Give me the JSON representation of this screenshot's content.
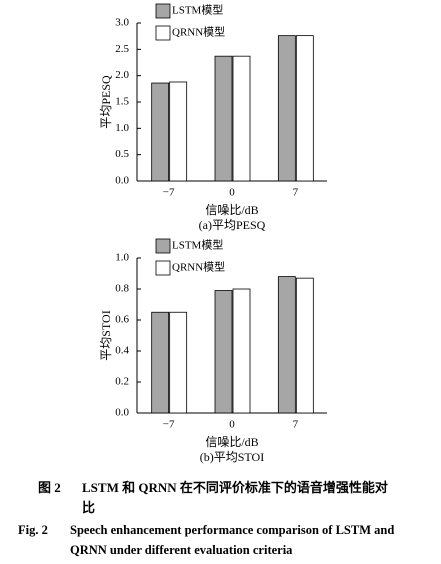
{
  "chart_data": [
    {
      "type": "bar",
      "xlabel": "信噪比/dB",
      "subtitle": "(a)平均PESQ",
      "ylabel": "平均PESQ",
      "categories": [
        "−7",
        "0",
        "7"
      ],
      "series": [
        {
          "name": "LSTM模型",
          "color": "#a6a6a6",
          "values": [
            1.86,
            2.37,
            2.76
          ]
        },
        {
          "name": "QRNN模型",
          "color": "#ffffff",
          "values": [
            1.88,
            2.37,
            2.76
          ]
        }
      ],
      "ylim": [
        0,
        3
      ],
      "yticks": [
        {
          "value": 0,
          "label": "0.0"
        },
        0.5,
        {
          "value": 1,
          "label": "1.0"
        },
        1.5,
        {
          "value": 2,
          "label": "2.0"
        },
        2.5,
        {
          "value": 3,
          "label": "3.0"
        }
      ],
      "legend": "upper left"
    },
    {
      "type": "bar",
      "xlabel": "信噪比/dB",
      "subtitle": "(b)平均STOI",
      "ylabel": "平均STOI",
      "categories": [
        "−7",
        "0",
        "7"
      ],
      "series": [
        {
          "name": "LSTM模型",
          "color": "#a6a6a6",
          "values": [
            0.65,
            0.79,
            0.88
          ]
        },
        {
          "name": "QRNN模型",
          "color": "#ffffff",
          "values": [
            0.65,
            0.8,
            0.87
          ]
        }
      ],
      "ylim": [
        0,
        1
      ],
      "yticks": [
        {
          "value": 0,
          "label": "0.0"
        },
        0.2,
        0.4,
        0.6,
        0.8,
        {
          "value": 1,
          "label": "1.0"
        }
      ],
      "legend": "upper left"
    }
  ],
  "caption": {
    "label_cn": "图 2",
    "text_cn": "LSTM 和 QRNN 在不同评价标准下的语音增强性能对比",
    "label_en": "Fig. 2",
    "text_en": "Speech enhancement performance comparison of LSTM and QRNN under different evaluation criteria"
  }
}
